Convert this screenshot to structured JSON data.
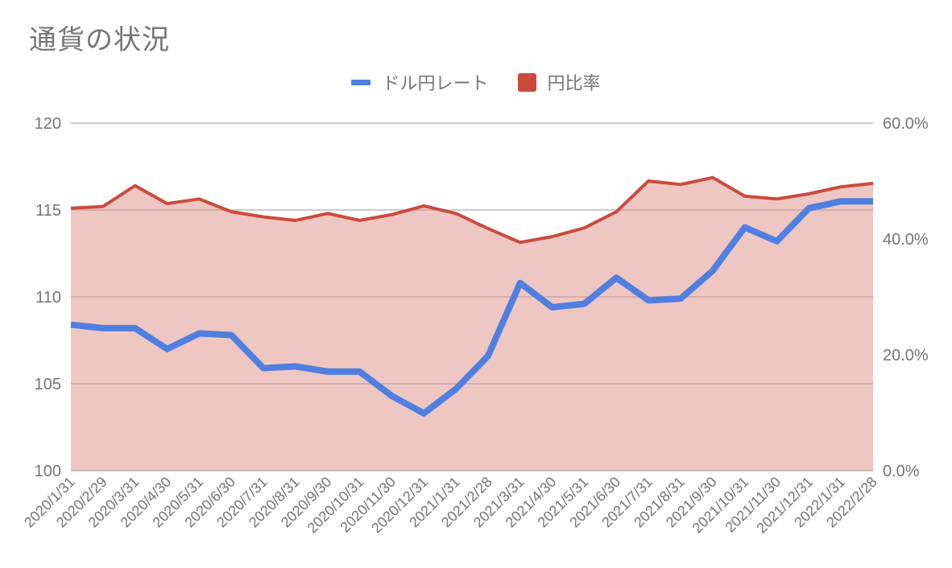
{
  "title": "通貨の状況",
  "legend": [
    {
      "label": "ドル円レート",
      "color": "#4f7fe0",
      "shape": "line"
    },
    {
      "label": "円比率",
      "color": "#cc4a3c",
      "shape": "box"
    }
  ],
  "colors": {
    "rate_line": "#4f7fe0",
    "ratio_line": "#cc4a3c",
    "ratio_fill": "#eec7c3",
    "grid": "#cccccc",
    "text": "#757575"
  },
  "axes": {
    "left_ticks": [
      "100",
      "105",
      "110",
      "115",
      "120"
    ],
    "right_ticks": [
      "0.0%",
      "20.0%",
      "40.0%",
      "60.0%"
    ]
  },
  "chart_data": {
    "type": "line",
    "title": "通貨の状況",
    "xlabel": "",
    "ylabel": "",
    "ylim": [
      100,
      120
    ],
    "y2lim": [
      0,
      60
    ],
    "grid": true,
    "legend_position": "top",
    "categories": [
      "2020/1/31",
      "2020/2/29",
      "2020/3/31",
      "2020/4/30",
      "2020/5/31",
      "2020/6/30",
      "2020/7/31",
      "2020/8/31",
      "2020/9/30",
      "2020/10/31",
      "2020/11/30",
      "2020/12/31",
      "2021/1/31",
      "2021/2/28",
      "2021/3/31",
      "2021/4/30",
      "2021/5/31",
      "2021/6/30",
      "2021/7/31",
      "2021/8/31",
      "2021/9/30",
      "2021/10/31",
      "2021/11/30",
      "2021/12/31",
      "2022/1/31",
      "2022/2/28"
    ],
    "series": [
      {
        "name": "ドル円レート",
        "type": "line",
        "axis": "left",
        "values": [
          108.4,
          108.2,
          108.2,
          107.0,
          107.9,
          107.8,
          105.9,
          106.0,
          105.7,
          105.7,
          104.3,
          103.3,
          104.7,
          106.6,
          110.8,
          109.4,
          109.6,
          111.1,
          109.8,
          109.9,
          111.5,
          114.0,
          113.2,
          115.1,
          115.5,
          115.5
        ]
      },
      {
        "name": "円比率",
        "type": "area",
        "axis": "right",
        "unit": "%",
        "values": [
          45.3,
          45.6,
          49.2,
          46.1,
          46.9,
          44.7,
          43.8,
          43.2,
          44.4,
          43.2,
          44.2,
          45.7,
          44.4,
          41.8,
          39.4,
          40.4,
          41.9,
          44.7,
          50.0,
          49.4,
          50.6,
          47.4,
          46.9,
          47.8,
          49.0,
          49.6
        ]
      }
    ]
  }
}
